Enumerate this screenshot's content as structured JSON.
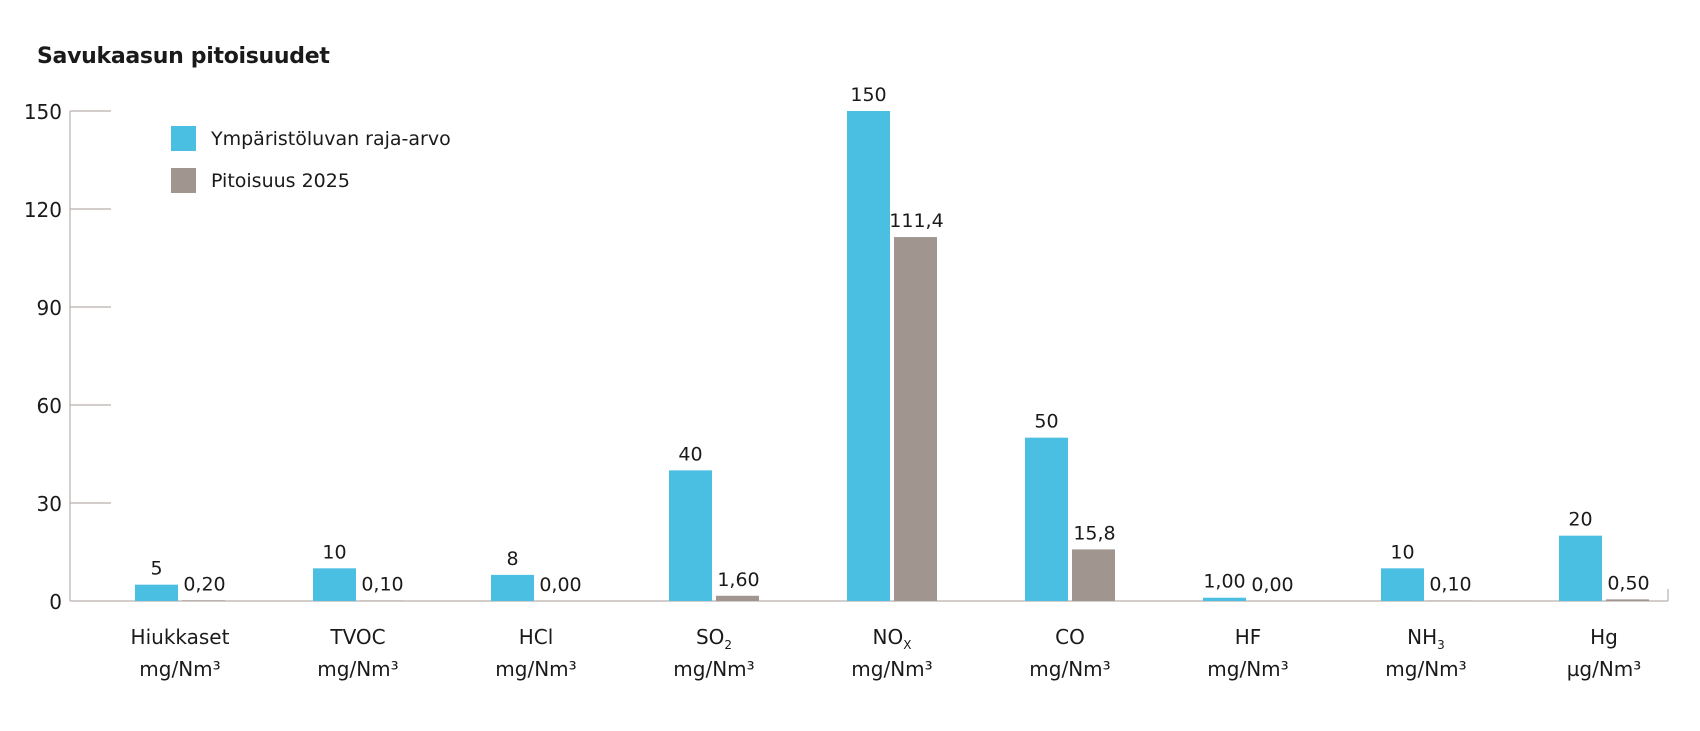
{
  "chart_data": {
    "type": "bar",
    "title": "Savukaasun pitoisuudet",
    "categories": [
      {
        "name": "Hiukkaset",
        "sub": "",
        "unit": "mg/Nm³"
      },
      {
        "name": "TVOC",
        "sub": "",
        "unit": "mg/Nm³"
      },
      {
        "name": "HCl",
        "sub": "",
        "unit": "mg/Nm³"
      },
      {
        "name": "SO",
        "sub": "2",
        "unit": "mg/Nm³"
      },
      {
        "name": "NO",
        "sub": "X",
        "unit": "mg/Nm³"
      },
      {
        "name": "CO",
        "sub": "",
        "unit": "mg/Nm³"
      },
      {
        "name": "HF",
        "sub": "",
        "unit": "mg/Nm³"
      },
      {
        "name": "NH",
        "sub": "3",
        "unit": "mg/Nm³"
      },
      {
        "name": "Hg",
        "sub": "",
        "unit": "µg/Nm³"
      }
    ],
    "series": [
      {
        "name": "Ympäristöluvan raja-arvo",
        "color": "#4bbfe2",
        "values": [
          5,
          10,
          8,
          40,
          150,
          50,
          1.0,
          10,
          20
        ],
        "labels": [
          "5",
          "10",
          "8",
          "40",
          "150",
          "50",
          "1,00",
          "10",
          "20"
        ]
      },
      {
        "name": "Pitoisuus 2025",
        "color": "#a0958f",
        "values": [
          0.2,
          0.1,
          0.0,
          1.6,
          111.4,
          15.8,
          0.0,
          0.1,
          0.5
        ],
        "labels": [
          "0,20",
          "0,10",
          "0,00",
          "1,60",
          "111,4",
          "15,8",
          "0,00",
          "0,10",
          "0,50"
        ]
      }
    ],
    "ylim": [
      0,
      150
    ],
    "yticks": [
      0,
      30,
      60,
      90,
      120,
      150
    ],
    "grid": false,
    "legend": "top-left",
    "xlabel": "",
    "ylabel": ""
  }
}
